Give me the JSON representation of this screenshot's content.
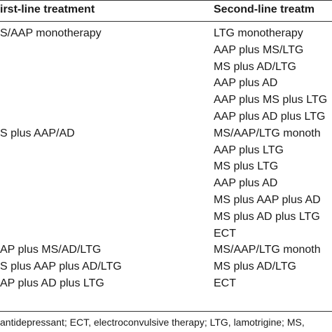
{
  "header": {
    "col1": "irst-line treatment",
    "col2": "Second-line treatm"
  },
  "rows": [
    {
      "first": "S/AAP monotherapy",
      "second": "LTG monotherapy"
    },
    {
      "first": "",
      "second": "AAP plus MS/LTG"
    },
    {
      "first": "",
      "second": "MS plus AD/LTG"
    },
    {
      "first": "",
      "second": "AAP plus AD"
    },
    {
      "first": "",
      "second": "AAP plus MS plus LTG"
    },
    {
      "first": "",
      "second": "AAP plus AD plus LTG"
    },
    {
      "first": "S plus AAP/AD",
      "second": "MS/AAP/LTG monoth"
    },
    {
      "first": "",
      "second": "AAP plus LTG"
    },
    {
      "first": "",
      "second": "MS plus LTG"
    },
    {
      "first": "",
      "second": "AAP plus AD"
    },
    {
      "first": "",
      "second": "MS plus AAP plus AD"
    },
    {
      "first": "",
      "second": "MS plus AD plus LTG"
    },
    {
      "first": "",
      "second": "ECT"
    },
    {
      "first": "AP plus MS/AD/LTG",
      "second": "MS/AAP/LTG monoth"
    },
    {
      "first": "S plus AAP plus AD/LTG",
      "second": "MS plus AD/LTG"
    },
    {
      "first": "AP plus AD plus LTG",
      "second": "ECT"
    }
  ],
  "footnote": " antidepressant; ECT, electroconvulsive therapy; LTG, lamotrigine; MS,"
}
